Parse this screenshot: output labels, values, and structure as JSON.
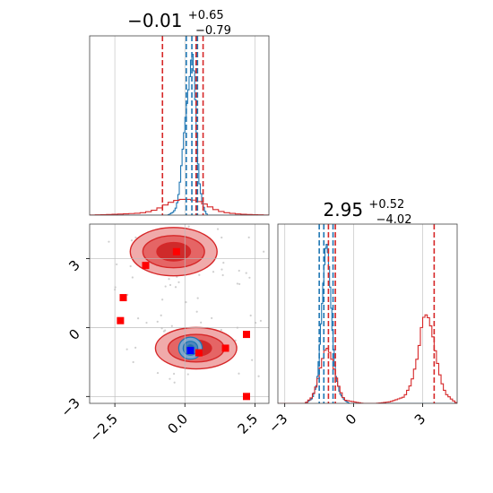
{
  "chart_data": [
    {
      "type": "histogram",
      "panel": "marginal-param-1",
      "title_value": "−0.01",
      "title_upper": "+0.65",
      "title_lower": "−0.79",
      "xlim": [
        -3.4,
        3.0
      ],
      "grid": true,
      "series": [
        {
          "color": "#1f77b4",
          "x": [
            -0.6,
            -0.4,
            -0.3,
            -0.2,
            -0.1,
            0.0,
            0.1,
            0.2,
            0.25,
            0.3,
            0.35,
            0.4,
            0.45,
            0.5,
            0.6,
            0.7,
            0.8
          ],
          "density": [
            0.0,
            0.02,
            0.05,
            0.15,
            0.35,
            0.55,
            0.72,
            0.88,
            1.0,
            0.95,
            0.8,
            0.6,
            0.4,
            0.22,
            0.1,
            0.03,
            0.0
          ],
          "quantile_lines": [
            0.05,
            0.25,
            0.45
          ]
        },
        {
          "color": "#d62728",
          "x": [
            -3.4,
            -2.8,
            -2.4,
            -2.0,
            -1.6,
            -1.4,
            -1.2,
            -1.0,
            -0.8,
            -0.6,
            -0.4,
            -0.2,
            0.0,
            0.2,
            0.4,
            0.6,
            0.8,
            1.0,
            1.2,
            1.4,
            1.6,
            1.8,
            2.0,
            2.4,
            3.0
          ],
          "density": [
            0.0,
            0.01,
            0.02,
            0.03,
            0.04,
            0.06,
            0.08,
            0.12,
            0.18,
            0.24,
            0.29,
            0.32,
            0.33,
            0.32,
            0.3,
            0.26,
            0.2,
            0.14,
            0.09,
            0.06,
            0.04,
            0.03,
            0.02,
            0.01,
            0.0
          ],
          "quantile_lines": [
            -0.8,
            0.4,
            0.65
          ]
        }
      ]
    },
    {
      "type": "contour",
      "panel": "joint-param-1-param-2",
      "xlim": [
        -3.4,
        3.0
      ],
      "ylim": [
        -3.3,
        4.5
      ],
      "xticks": [
        -2.5,
        0.0,
        2.5
      ],
      "xtick_labels": [
        "−2.5",
        "0.0",
        "2.5"
      ],
      "yticks": [
        -3,
        0,
        3
      ],
      "ytick_labels": [
        "−3",
        "0",
        "3"
      ],
      "grid": true,
      "red_modes": [
        {
          "cx": -0.4,
          "cy": 3.3,
          "levels": [
            {
              "rx": 1.55,
              "ry": 1.05
            },
            {
              "rx": 1.1,
              "ry": 0.7
            },
            {
              "rx": 0.6,
              "ry": 0.4
            }
          ]
        },
        {
          "cx": 0.4,
          "cy": -0.9,
          "levels": [
            {
              "rx": 1.45,
              "ry": 0.9
            },
            {
              "rx": 1.0,
              "ry": 0.6
            },
            {
              "rx": 0.55,
              "ry": 0.35
            }
          ]
        }
      ],
      "blue_mode": {
        "cx": 0.2,
        "cy": -0.9,
        "levels": [
          {
            "rx": 0.42,
            "ry": 0.48
          },
          {
            "rx": 0.26,
            "ry": 0.3
          },
          {
            "rx": 0.12,
            "ry": 0.15
          }
        ]
      },
      "red_markers": [
        {
          "x": -0.3,
          "y": 3.3
        },
        {
          "x": -1.4,
          "y": 2.7
        },
        {
          "x": -2.2,
          "y": 1.3
        },
        {
          "x": -2.3,
          "y": 0.3
        },
        {
          "x": 2.2,
          "y": -0.3
        },
        {
          "x": 1.45,
          "y": -0.9
        },
        {
          "x": 0.5,
          "y": -1.1
        },
        {
          "x": 2.2,
          "y": -3.0
        }
      ],
      "blue_markers": [
        {
          "x": 0.2,
          "y": -1.0
        }
      ]
    },
    {
      "type": "histogram",
      "panel": "marginal-param-2",
      "title_value": "2.95",
      "title_upper": "+0.52",
      "title_lower": "−4.02",
      "xlim": [
        -3.3,
        4.5
      ],
      "xticks": [
        -3,
        0,
        3
      ],
      "xtick_labels": [
        "−3",
        "0",
        "3"
      ],
      "grid": true,
      "series": [
        {
          "color": "#1f77b4",
          "x": [
            -2.1,
            -1.8,
            -1.6,
            -1.5,
            -1.4,
            -1.3,
            -1.2,
            -1.1,
            -1.0,
            -0.9,
            -0.8,
            -0.6,
            -0.4,
            -0.2
          ],
          "density": [
            0.0,
            0.03,
            0.12,
            0.3,
            0.55,
            0.8,
            1.0,
            0.9,
            0.65,
            0.38,
            0.18,
            0.06,
            0.02,
            0.0
          ],
          "quantile_lines": [
            -1.5,
            -1.3,
            -0.9
          ]
        },
        {
          "color": "#d62728",
          "x": [
            -2.1,
            -1.8,
            -1.6,
            -1.4,
            -1.2,
            -1.0,
            -0.8,
            -0.6,
            -0.4,
            0.0,
            0.4,
            1.0,
            1.6,
            2.2,
            2.5,
            2.8,
            3.0,
            3.2,
            3.4,
            3.6,
            3.8,
            4.0,
            4.3,
            4.5
          ],
          "density": [
            0.0,
            0.04,
            0.12,
            0.25,
            0.35,
            0.3,
            0.18,
            0.08,
            0.02,
            0.01,
            0.0,
            0.0,
            0.01,
            0.04,
            0.12,
            0.3,
            0.52,
            0.55,
            0.45,
            0.28,
            0.14,
            0.06,
            0.02,
            0.0
          ],
          "quantile_lines": [
            -1.1,
            -0.8,
            3.5
          ]
        }
      ]
    }
  ]
}
